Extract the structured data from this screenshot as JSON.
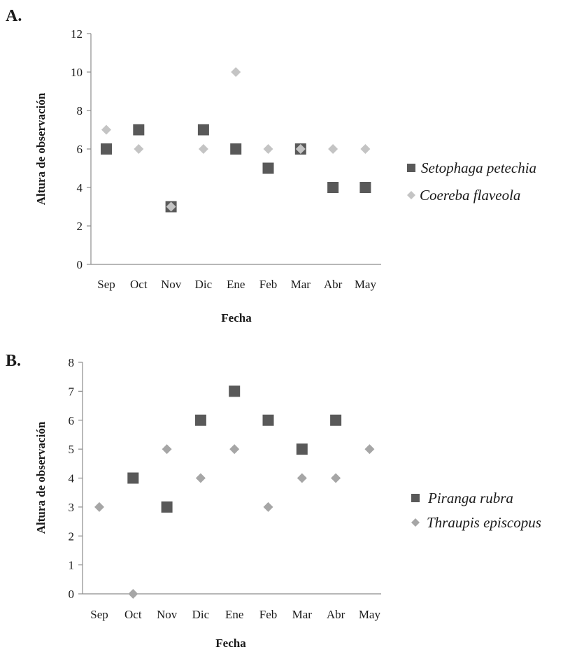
{
  "chart_data": [
    {
      "type": "scatter",
      "panel_label": "A.",
      "categories": [
        "Sep",
        "Oct",
        "Nov",
        "Dic",
        "Ene",
        "Feb",
        "Mar",
        "Abr",
        "May"
      ],
      "xlabel": "Fecha",
      "ylabel": "Altura de observación",
      "ylim": [
        0,
        12
      ],
      "yticks": [
        0,
        2,
        4,
        6,
        8,
        10,
        12
      ],
      "grid": false,
      "legend_position": "right",
      "series": [
        {
          "name": "Setophaga petechia",
          "marker": "square",
          "color": "#595959",
          "values": [
            6,
            7,
            3,
            7,
            6,
            5,
            6,
            4,
            4
          ]
        },
        {
          "name": "Coereba flaveola",
          "marker": "diamond",
          "color": "#c4c4c4",
          "values": [
            7,
            6,
            3,
            6,
            10,
            6,
            6,
            6,
            6
          ]
        }
      ]
    },
    {
      "type": "scatter",
      "panel_label": "B.",
      "categories": [
        "Sep",
        "Oct",
        "Nov",
        "Dic",
        "Ene",
        "Feb",
        "Mar",
        "Abr",
        "May"
      ],
      "xlabel": "Fecha",
      "ylabel": "Altura de observación",
      "ylim": [
        0,
        8
      ],
      "yticks": [
        0,
        1,
        2,
        3,
        4,
        5,
        6,
        7,
        8
      ],
      "grid": false,
      "legend_position": "right",
      "series": [
        {
          "name": "Piranga rubra",
          "marker": "square",
          "color": "#595959",
          "values": [
            null,
            4,
            3,
            6,
            7,
            6,
            5,
            6,
            null
          ]
        },
        {
          "name": "Thraupis episcopus",
          "marker": "diamond",
          "color": "#a6a6a6",
          "values": [
            3,
            0,
            5,
            4,
            5,
            3,
            4,
            4,
            5
          ]
        }
      ]
    }
  ]
}
